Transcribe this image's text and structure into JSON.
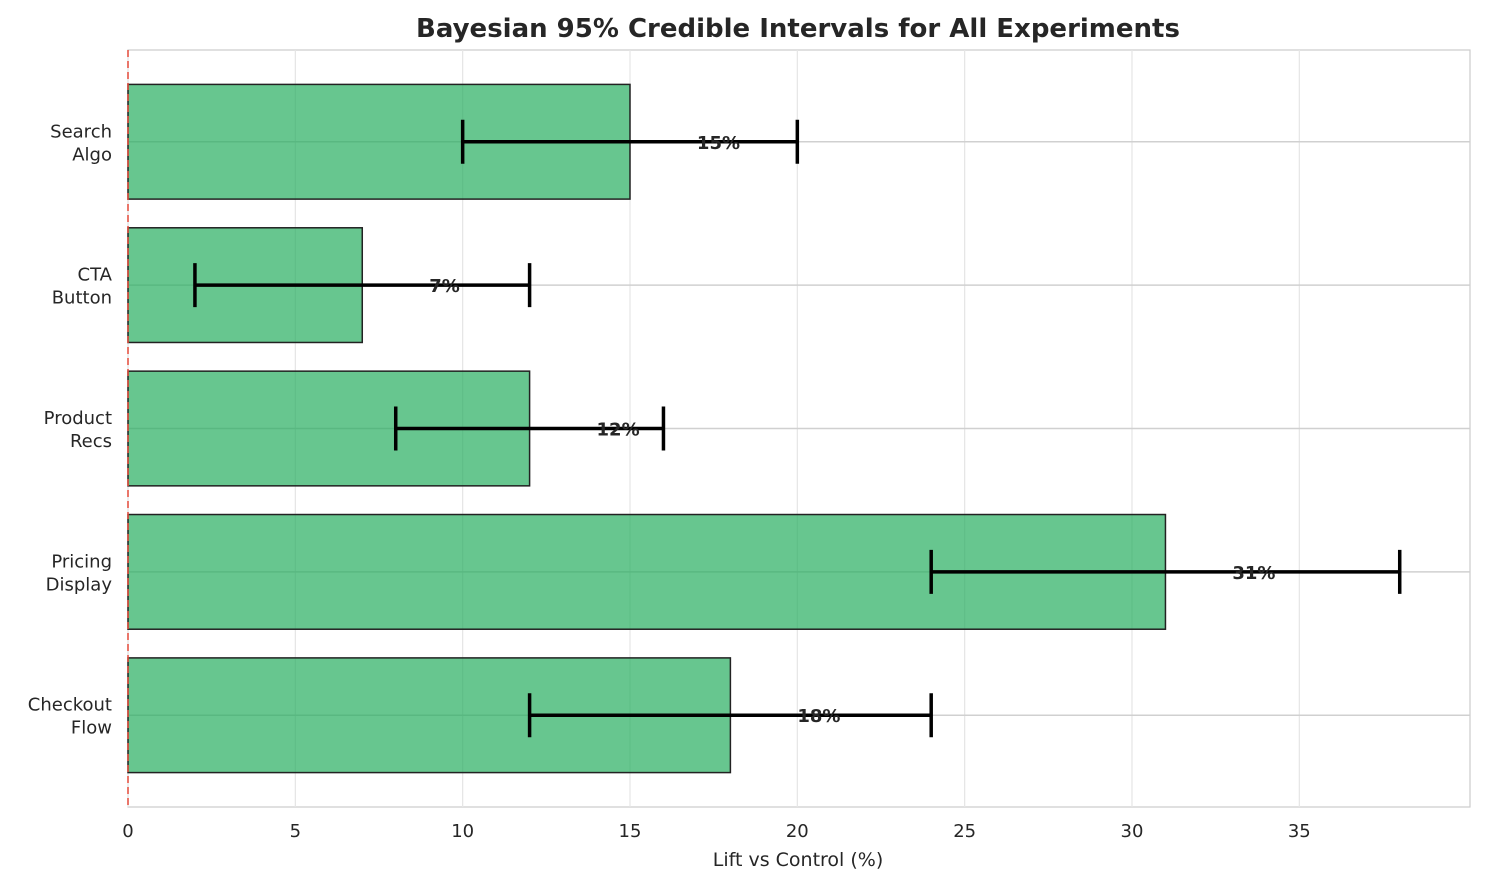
{
  "chart_data": {
    "type": "bar",
    "orientation": "horizontal",
    "title": "Bayesian 95% Credible Intervals for All Experiments",
    "xlabel": "Lift vs Control (%)",
    "ylabel": "",
    "categories": [
      "Checkout\nFlow",
      "Pricing\nDisplay",
      "Product\nRecs",
      "CTA\nButton",
      "Search\nAlgo"
    ],
    "values": [
      18,
      31,
      12,
      7,
      15
    ],
    "ci_lower": [
      12,
      24,
      8,
      2,
      10
    ],
    "ci_upper": [
      24,
      38,
      16,
      12,
      20
    ],
    "data_labels": [
      "18%",
      "31%",
      "12%",
      "7%",
      "15%"
    ],
    "xlim": [
      0,
      40.1
    ],
    "xticks": [
      0,
      5,
      10,
      15,
      20,
      25,
      30,
      35
    ],
    "reference_line": {
      "x": 0,
      "style": "dashed",
      "color": "#e74c3c"
    },
    "grid": true,
    "colors": {
      "bar": "#27ae60",
      "bar_edge": "#222222",
      "errorbar": "#000000",
      "grid": "#e5e5e5"
    }
  }
}
